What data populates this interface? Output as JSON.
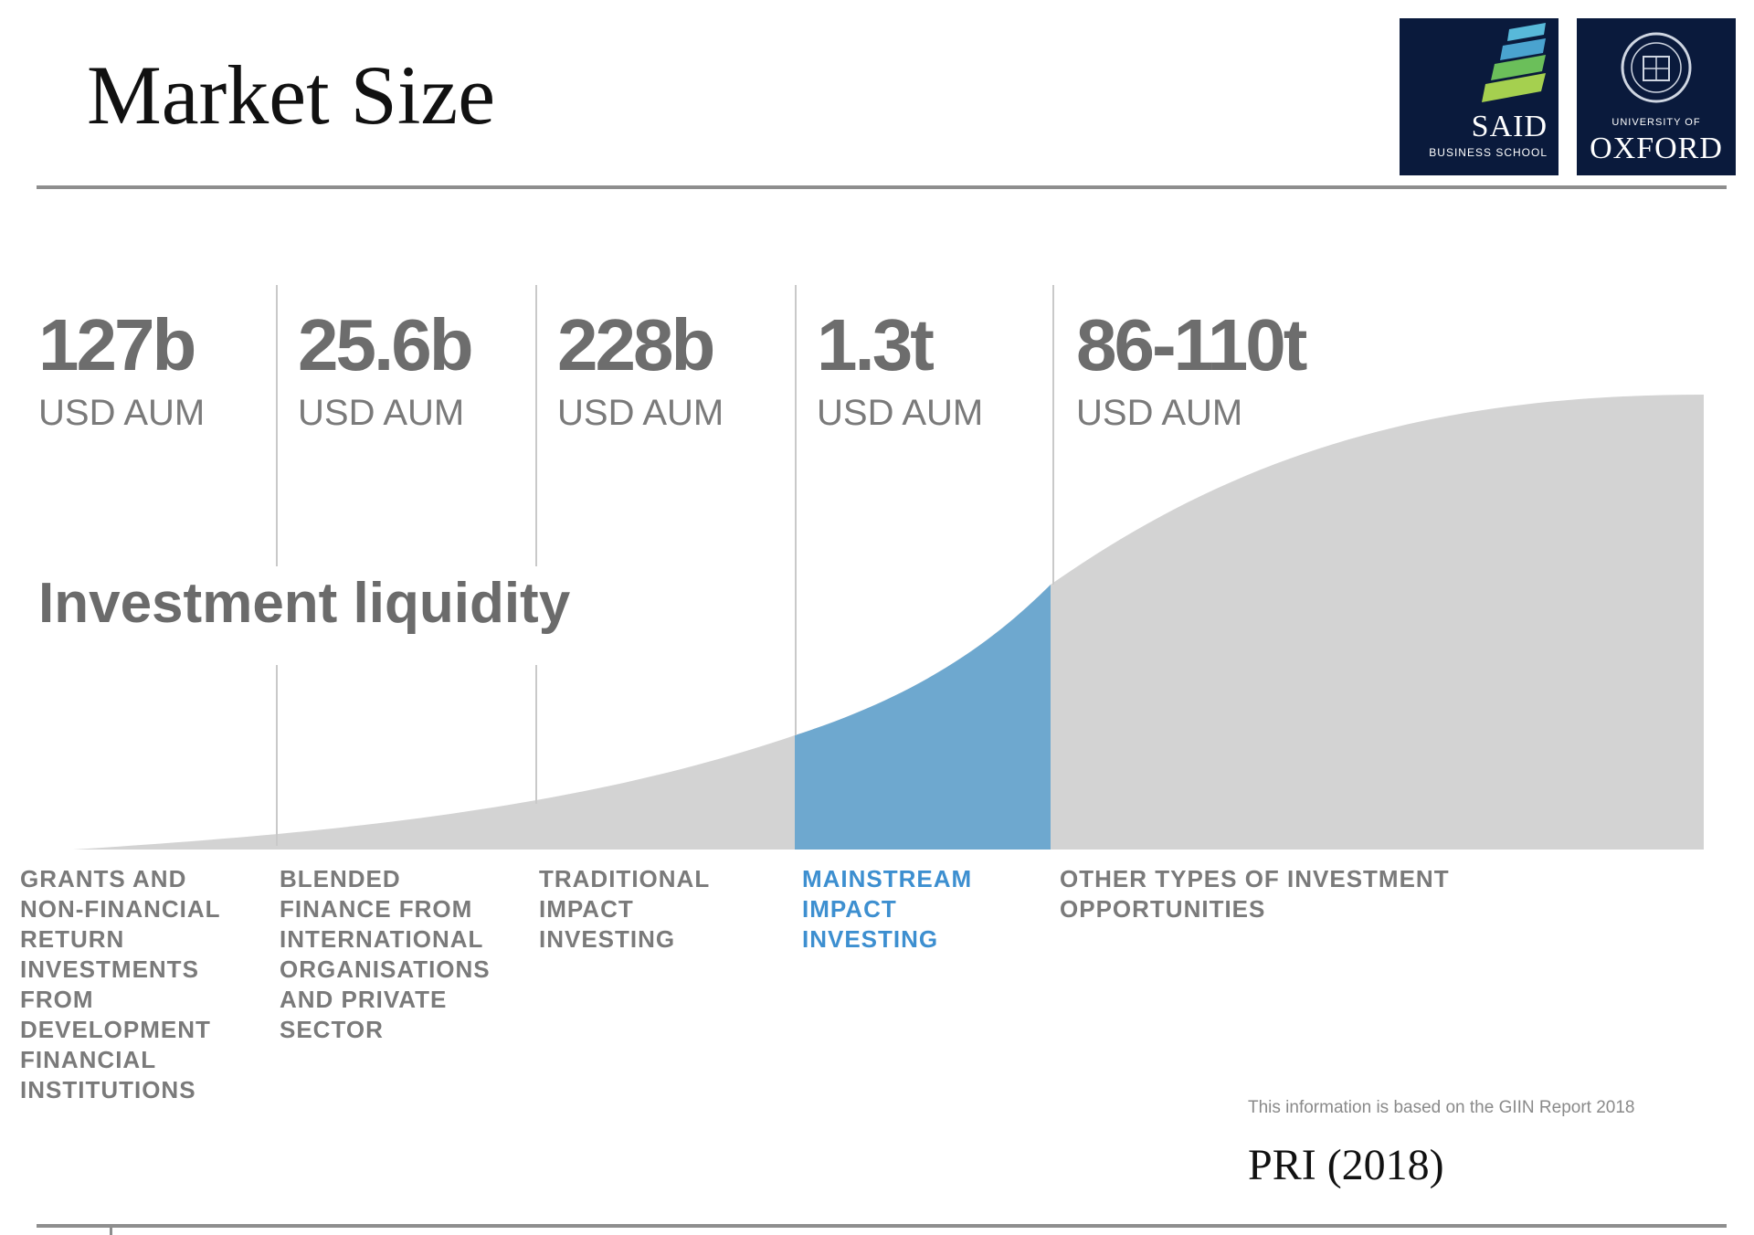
{
  "slide": {
    "title": "Market Size",
    "citation": "PRI (2018)",
    "source_note": "This information is based on the GIIN Report 2018",
    "liquidity_label": "Investment liquidity"
  },
  "logos": {
    "said": {
      "name": "SAID",
      "sub": "BUSINESS SCHOOL"
    },
    "oxford": {
      "sub": "UNIVERSITY OF",
      "name": "OXFORD"
    }
  },
  "colors": {
    "curve_fill": "#d3d3d3",
    "highlight": "#6ea8cf",
    "divider": "#c9c9c9",
    "logo_bg": "#0a1a3c"
  },
  "segments": [
    {
      "value": "127b",
      "unit": "USD AUM",
      "label": "GRANTS AND\nNON-FINANCIAL\nRETURN\nINVESTMENTS\nFROM\nDEVELOPMENT\nFINANCIAL\nINSTITUTIONS",
      "highlight": false
    },
    {
      "value": "25.6b",
      "unit": "USD AUM",
      "label": "BLENDED\nFINANCE FROM\nINTERNATIONAL\nORGANISATIONS\nAND PRIVATE\nSECTOR",
      "highlight": false
    },
    {
      "value": "228b",
      "unit": "USD AUM",
      "label": "TRADITIONAL\nIMPACT\nINVESTING",
      "highlight": false
    },
    {
      "value": "1.3t",
      "unit": "USD AUM",
      "label": "MAINSTREAM\nIMPACT\nINVESTING",
      "highlight": true
    },
    {
      "value": "86-110t",
      "unit": "USD AUM",
      "label": "OTHER TYPES OF INVESTMENT\nOPPORTUNITIES",
      "highlight": false
    }
  ]
}
